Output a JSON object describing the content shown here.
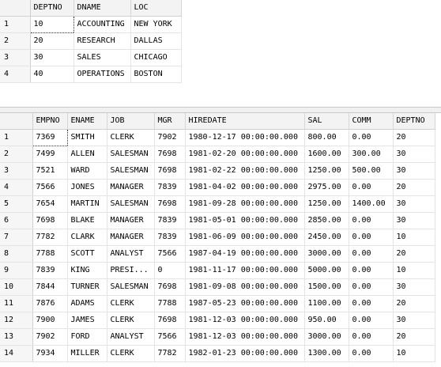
{
  "dept": {
    "columns": [
      "DEPTNO",
      "DNAME",
      "LOC"
    ],
    "rows": [
      [
        "1",
        "10",
        "ACCOUNTING",
        "NEW YORK"
      ],
      [
        "2",
        "20",
        "RESEARCH",
        "DALLAS"
      ],
      [
        "3",
        "30",
        "SALES",
        "CHICAGO"
      ],
      [
        "4",
        "40",
        "OPERATIONS",
        "BOSTON"
      ]
    ]
  },
  "emp": {
    "columns": [
      "EMPNO",
      "ENAME",
      "JOB",
      "MGR",
      "HIREDATE",
      "SAL",
      "COMM",
      "DEPTNO"
    ],
    "rows": [
      [
        "1",
        "7369",
        "SMITH",
        "CLERK",
        "7902",
        "1980-12-17 00:00:00.000",
        "800.00",
        "0.00",
        "20"
      ],
      [
        "2",
        "7499",
        "ALLEN",
        "SALESMAN",
        "7698",
        "1981-02-20 00:00:00.000",
        "1600.00",
        "300.00",
        "30"
      ],
      [
        "3",
        "7521",
        "WARD",
        "SALESMAN",
        "7698",
        "1981-02-22 00:00:00.000",
        "1250.00",
        "500.00",
        "30"
      ],
      [
        "4",
        "7566",
        "JONES",
        "MANAGER",
        "7839",
        "1981-04-02 00:00:00.000",
        "2975.00",
        "0.00",
        "20"
      ],
      [
        "5",
        "7654",
        "MARTIN",
        "SALESMAN",
        "7698",
        "1981-09-28 00:00:00.000",
        "1250.00",
        "1400.00",
        "30"
      ],
      [
        "6",
        "7698",
        "BLAKE",
        "MANAGER",
        "7839",
        "1981-05-01 00:00:00.000",
        "2850.00",
        "0.00",
        "30"
      ],
      [
        "7",
        "7782",
        "CLARK",
        "MANAGER",
        "7839",
        "1981-06-09 00:00:00.000",
        "2450.00",
        "0.00",
        "10"
      ],
      [
        "8",
        "7788",
        "SCOTT",
        "ANALYST",
        "7566",
        "1987-04-19 00:00:00.000",
        "3000.00",
        "0.00",
        "20"
      ],
      [
        "9",
        "7839",
        "KING",
        "PRESI...",
        "0",
        "1981-11-17 00:00:00.000",
        "5000.00",
        "0.00",
        "10"
      ],
      [
        "10",
        "7844",
        "TURNER",
        "SALESMAN",
        "7698",
        "1981-09-08 00:00:00.000",
        "1500.00",
        "0.00",
        "30"
      ],
      [
        "11",
        "7876",
        "ADAMS",
        "CLERK",
        "7788",
        "1987-05-23 00:00:00.000",
        "1100.00",
        "0.00",
        "20"
      ],
      [
        "12",
        "7900",
        "JAMES",
        "CLERK",
        "7698",
        "1981-12-03 00:00:00.000",
        "950.00",
        "0.00",
        "30"
      ],
      [
        "13",
        "7902",
        "FORD",
        "ANALYST",
        "7566",
        "1981-12-03 00:00:00.000",
        "3000.00",
        "0.00",
        "20"
      ],
      [
        "14",
        "7934",
        "MILLER",
        "CLERK",
        "7782",
        "1982-01-23 00:00:00.000",
        "1300.00",
        "0.00",
        "10"
      ]
    ]
  }
}
